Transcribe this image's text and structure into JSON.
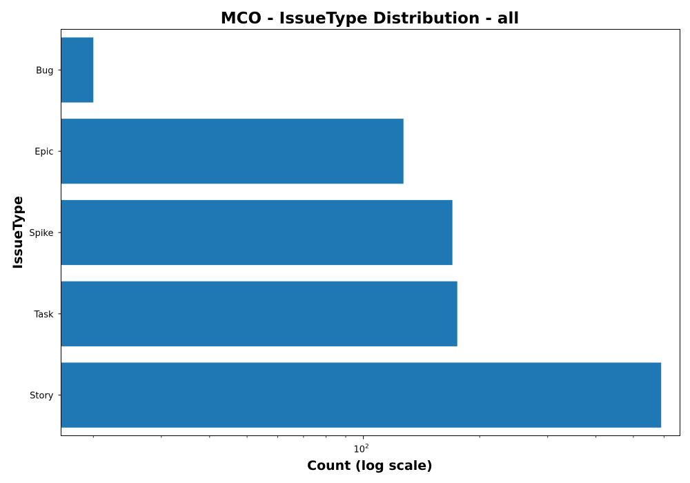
{
  "chart_data": {
    "type": "bar",
    "orientation": "horizontal",
    "title": "MCO - IssueType Distribution - all",
    "xlabel": "Count (log scale)",
    "ylabel": "IssueType",
    "x_scale": "log",
    "xlim": [
      16.5,
      660
    ],
    "x_major_ticks": [
      {
        "value": 100,
        "base": "10",
        "exponent": "2"
      }
    ],
    "x_minor_ticks": [
      20,
      30,
      40,
      50,
      60,
      70,
      80,
      90,
      200,
      300,
      400,
      500,
      600
    ],
    "categories": [
      "Bug",
      "Epic",
      "Spike",
      "Task",
      "Story"
    ],
    "values": [
      20,
      127,
      170,
      175,
      590
    ],
    "color": "#1f77b4",
    "grid": false,
    "legend": "none"
  }
}
